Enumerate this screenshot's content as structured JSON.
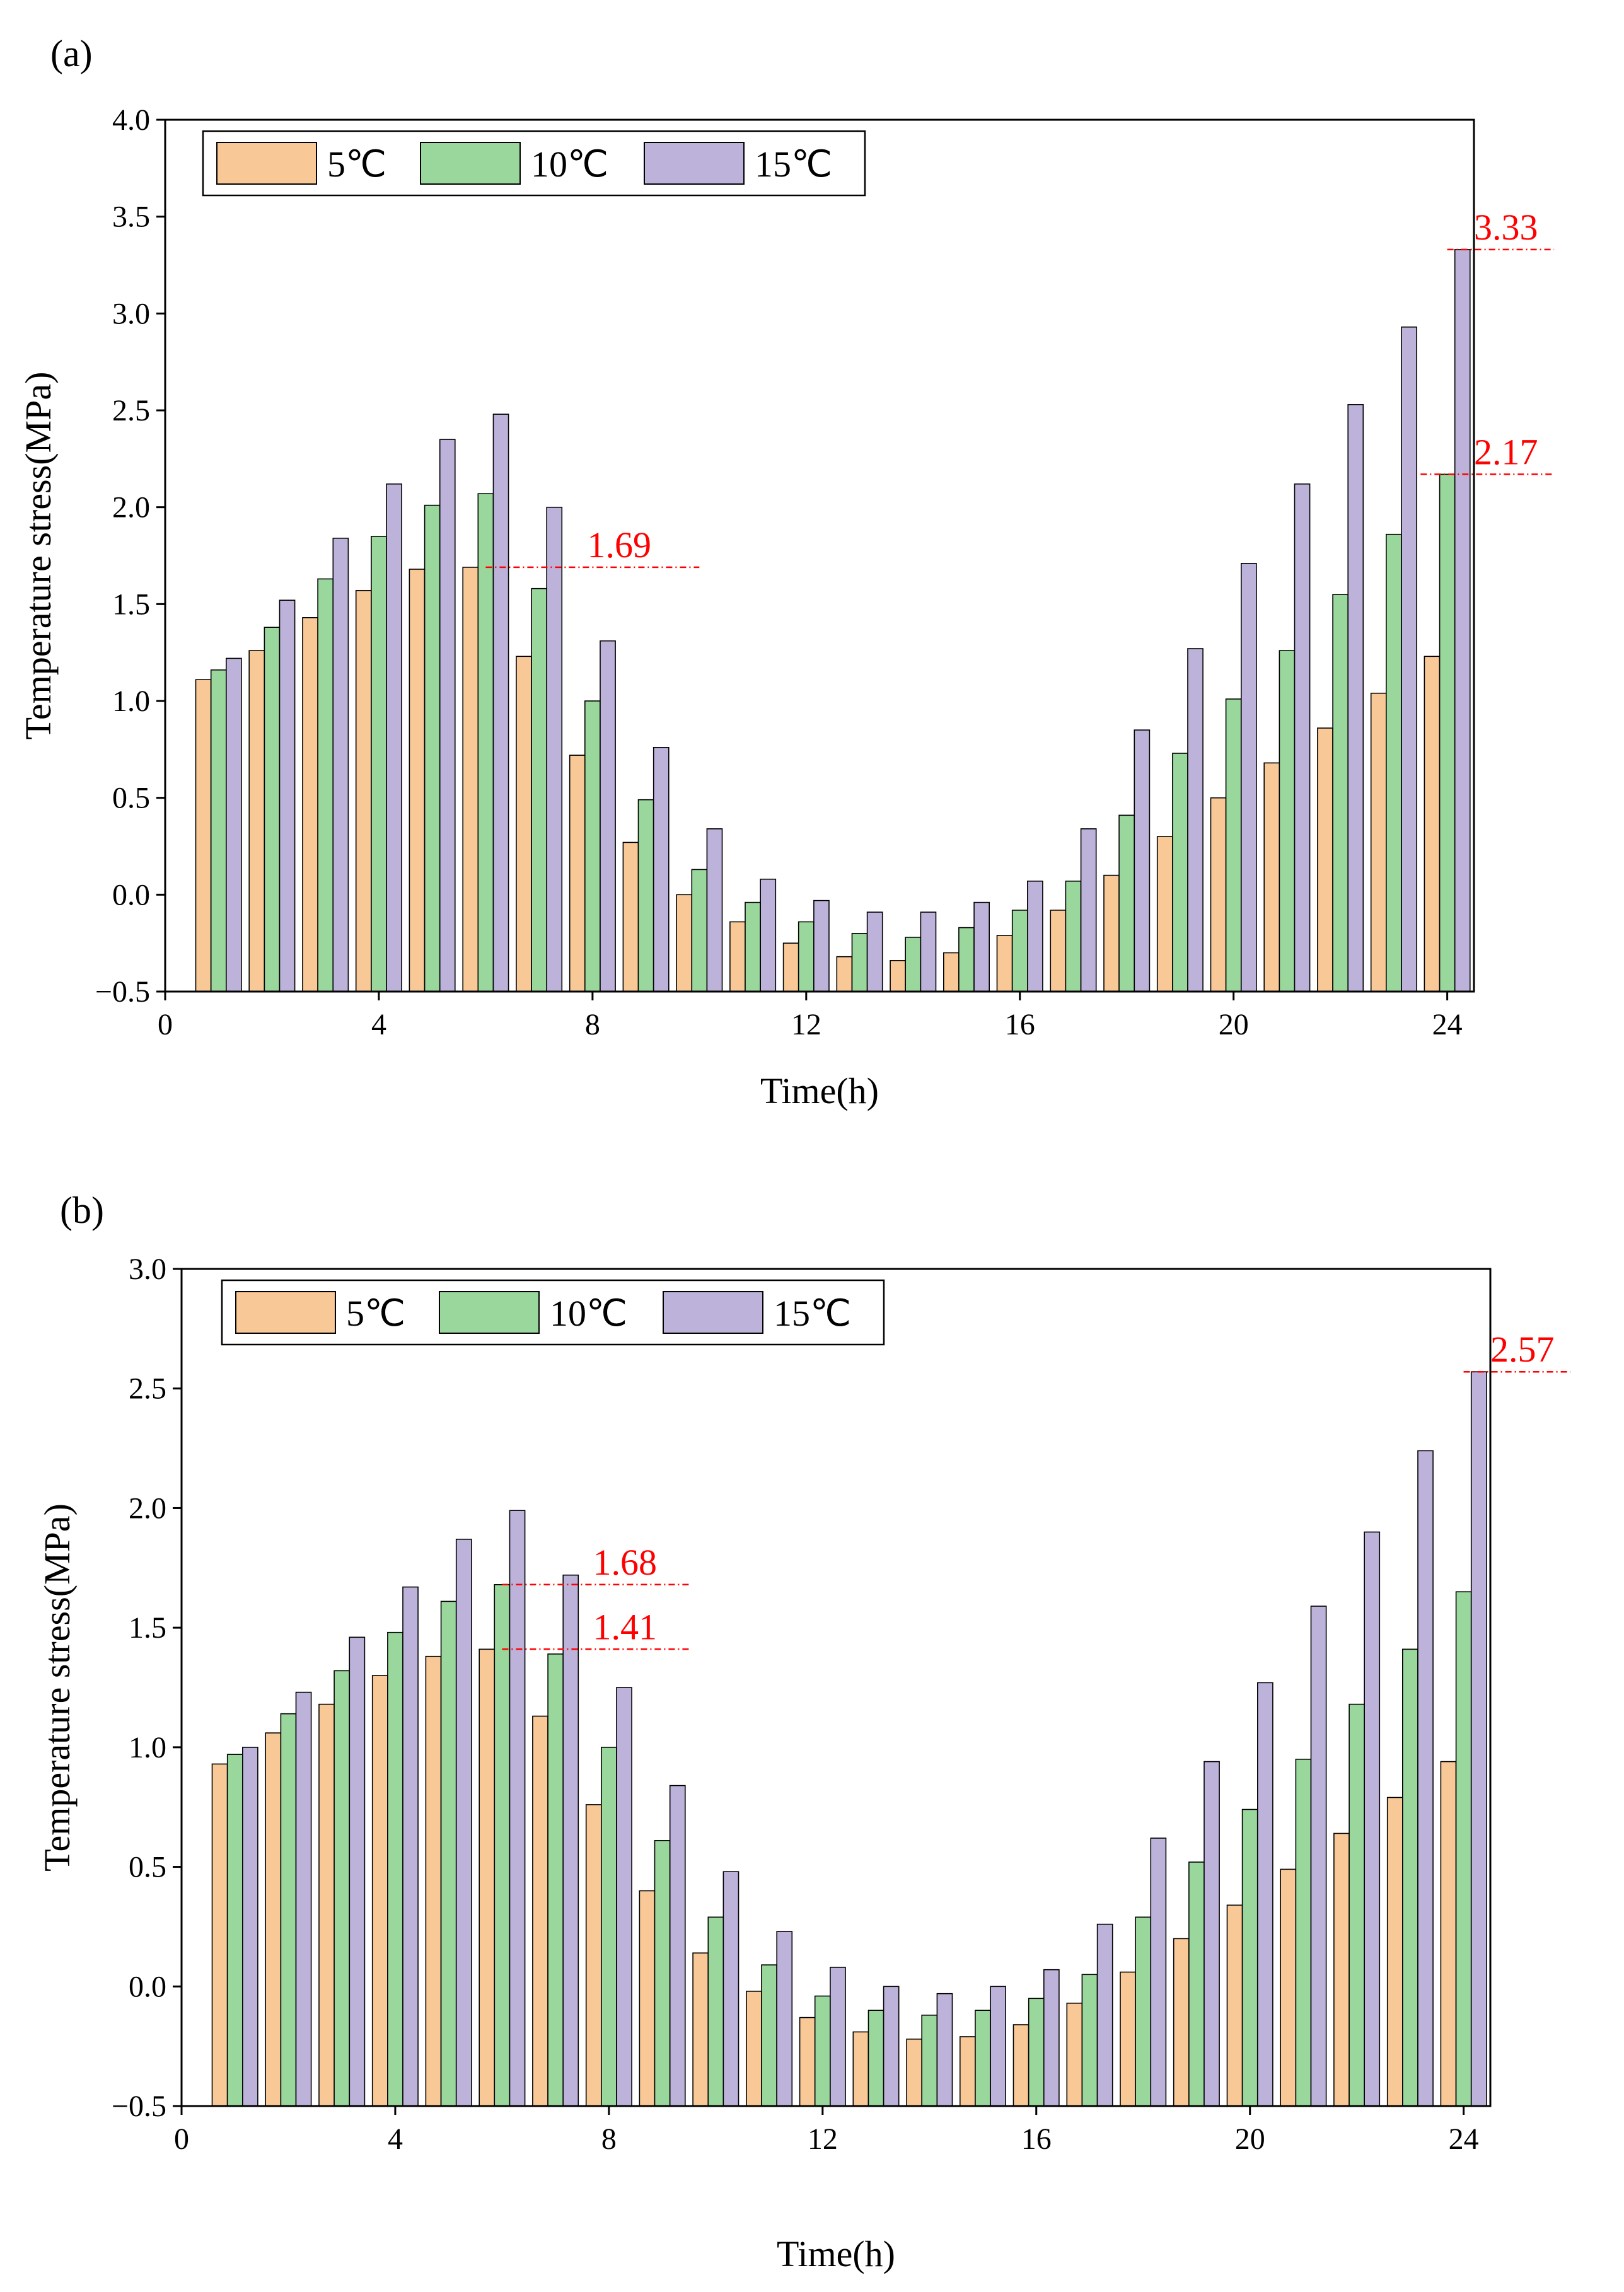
{
  "figure": {
    "colors": {
      "5C": "#f9c897",
      "10C": "#9ad79c",
      "15C": "#bdb2d9",
      "annotation": "#ff0000"
    }
  },
  "chart_data": [
    {
      "type": "bar",
      "panel_label": "(a)",
      "xlabel": "Time(h)",
      "ylabel": "Temperature stress(MPa)",
      "xlim": [
        0,
        24.5
      ],
      "ylim": [
        -0.5,
        4.0
      ],
      "xticks": [
        0,
        4,
        8,
        12,
        16,
        20,
        24
      ],
      "xtick_labels": [
        "0",
        "4",
        "8",
        "12",
        "16",
        "20",
        "24"
      ],
      "yticks": [
        -0.5,
        0.0,
        0.5,
        1.0,
        1.5,
        2.0,
        2.5,
        3.0,
        3.5,
        4.0
      ],
      "ytick_labels": [
        "−0.5",
        "0.0",
        "0.5",
        "1.0",
        "1.5",
        "2.0",
        "2.5",
        "3.0",
        "3.5",
        "4.0"
      ],
      "categories": [
        1,
        2,
        3,
        4,
        5,
        6,
        7,
        8,
        9,
        10,
        11,
        12,
        13,
        14,
        15,
        16,
        17,
        18,
        19,
        20,
        21,
        22,
        23,
        24
      ],
      "legend_position": "top-left",
      "series": [
        {
          "name": "5℃",
          "color_key": "5C",
          "values": [
            1.11,
            1.26,
            1.43,
            1.57,
            1.68,
            1.69,
            1.23,
            0.72,
            0.27,
            0.0,
            -0.14,
            -0.25,
            -0.32,
            -0.34,
            -0.3,
            -0.21,
            -0.08,
            0.1,
            0.3,
            0.5,
            0.68,
            0.86,
            1.04,
            1.23
          ]
        },
        {
          "name": "10℃",
          "color_key": "10C",
          "values": [
            1.16,
            1.38,
            1.63,
            1.85,
            2.01,
            2.07,
            1.58,
            1.0,
            0.49,
            0.13,
            -0.04,
            -0.14,
            -0.2,
            -0.22,
            -0.17,
            -0.08,
            0.07,
            0.41,
            0.73,
            1.01,
            1.26,
            1.55,
            1.86,
            2.17
          ]
        },
        {
          "name": "15℃",
          "color_key": "15C",
          "values": [
            1.22,
            1.52,
            1.84,
            2.12,
            2.35,
            2.48,
            2.0,
            1.31,
            0.76,
            0.34,
            0.08,
            -0.03,
            -0.09,
            -0.09,
            -0.04,
            0.07,
            0.34,
            0.85,
            1.27,
            1.71,
            2.12,
            2.53,
            2.93,
            3.33
          ]
        }
      ],
      "annotations": [
        {
          "text": "1.69",
          "value": 1.69,
          "x_from": 6.0,
          "x_to": 10.0,
          "label_x": 8.5
        },
        {
          "text": "3.33",
          "value": 3.33,
          "x_from": 24.0,
          "x_to": 26.0,
          "label_x": 25.1
        },
        {
          "text": "2.17",
          "value": 2.17,
          "x_from": 23.5,
          "x_to": 26.0,
          "label_x": 25.1
        }
      ]
    },
    {
      "type": "bar",
      "panel_label": "(b)",
      "xlabel": "Time(h)",
      "ylabel": "Temperature stress(MPa)",
      "xlim": [
        0,
        24.5
      ],
      "ylim": [
        -0.5,
        3.0
      ],
      "xticks": [
        0,
        4,
        8,
        12,
        16,
        20,
        24
      ],
      "xtick_labels": [
        "0",
        "4",
        "8",
        "12",
        "16",
        "20",
        "24"
      ],
      "yticks": [
        -0.5,
        0.0,
        0.5,
        1.0,
        1.5,
        2.0,
        2.5,
        3.0
      ],
      "ytick_labels": [
        "−0.5",
        "0.0",
        "0.5",
        "1.0",
        "1.5",
        "2.0",
        "2.5",
        "3.0"
      ],
      "categories": [
        1,
        2,
        3,
        4,
        5,
        6,
        7,
        8,
        9,
        10,
        11,
        12,
        13,
        14,
        15,
        16,
        17,
        18,
        19,
        20,
        21,
        22,
        23,
        24
      ],
      "legend_position": "top-left",
      "series": [
        {
          "name": "5℃",
          "color_key": "5C",
          "values": [
            0.93,
            1.06,
            1.18,
            1.3,
            1.38,
            1.41,
            1.13,
            0.76,
            0.4,
            0.14,
            -0.02,
            -0.13,
            -0.19,
            -0.22,
            -0.21,
            -0.16,
            -0.07,
            0.06,
            0.2,
            0.34,
            0.49,
            0.64,
            0.79,
            0.94
          ]
        },
        {
          "name": "10℃",
          "color_key": "10C",
          "values": [
            0.97,
            1.14,
            1.32,
            1.48,
            1.61,
            1.68,
            1.39,
            1.0,
            0.61,
            0.29,
            0.09,
            -0.04,
            -0.1,
            -0.12,
            -0.1,
            -0.05,
            0.05,
            0.29,
            0.52,
            0.74,
            0.95,
            1.18,
            1.41,
            1.65
          ]
        },
        {
          "name": "15℃",
          "color_key": "15C",
          "values": [
            1.0,
            1.23,
            1.46,
            1.67,
            1.87,
            1.99,
            1.72,
            1.25,
            0.84,
            0.48,
            0.23,
            0.08,
            0.0,
            -0.03,
            0.0,
            0.07,
            0.26,
            0.62,
            0.94,
            1.27,
            1.59,
            1.9,
            2.24,
            2.57
          ]
        }
      ],
      "annotations": [
        {
          "text": "1.68",
          "value": 1.68,
          "x_from": 6.0,
          "x_to": 9.5,
          "label_x": 8.3
        },
        {
          "text": "1.41",
          "value": 1.41,
          "x_from": 6.0,
          "x_to": 9.5,
          "label_x": 8.3
        },
        {
          "text": "2.57",
          "value": 2.57,
          "x_from": 24.0,
          "x_to": 26.0,
          "label_x": 25.1
        }
      ]
    }
  ]
}
